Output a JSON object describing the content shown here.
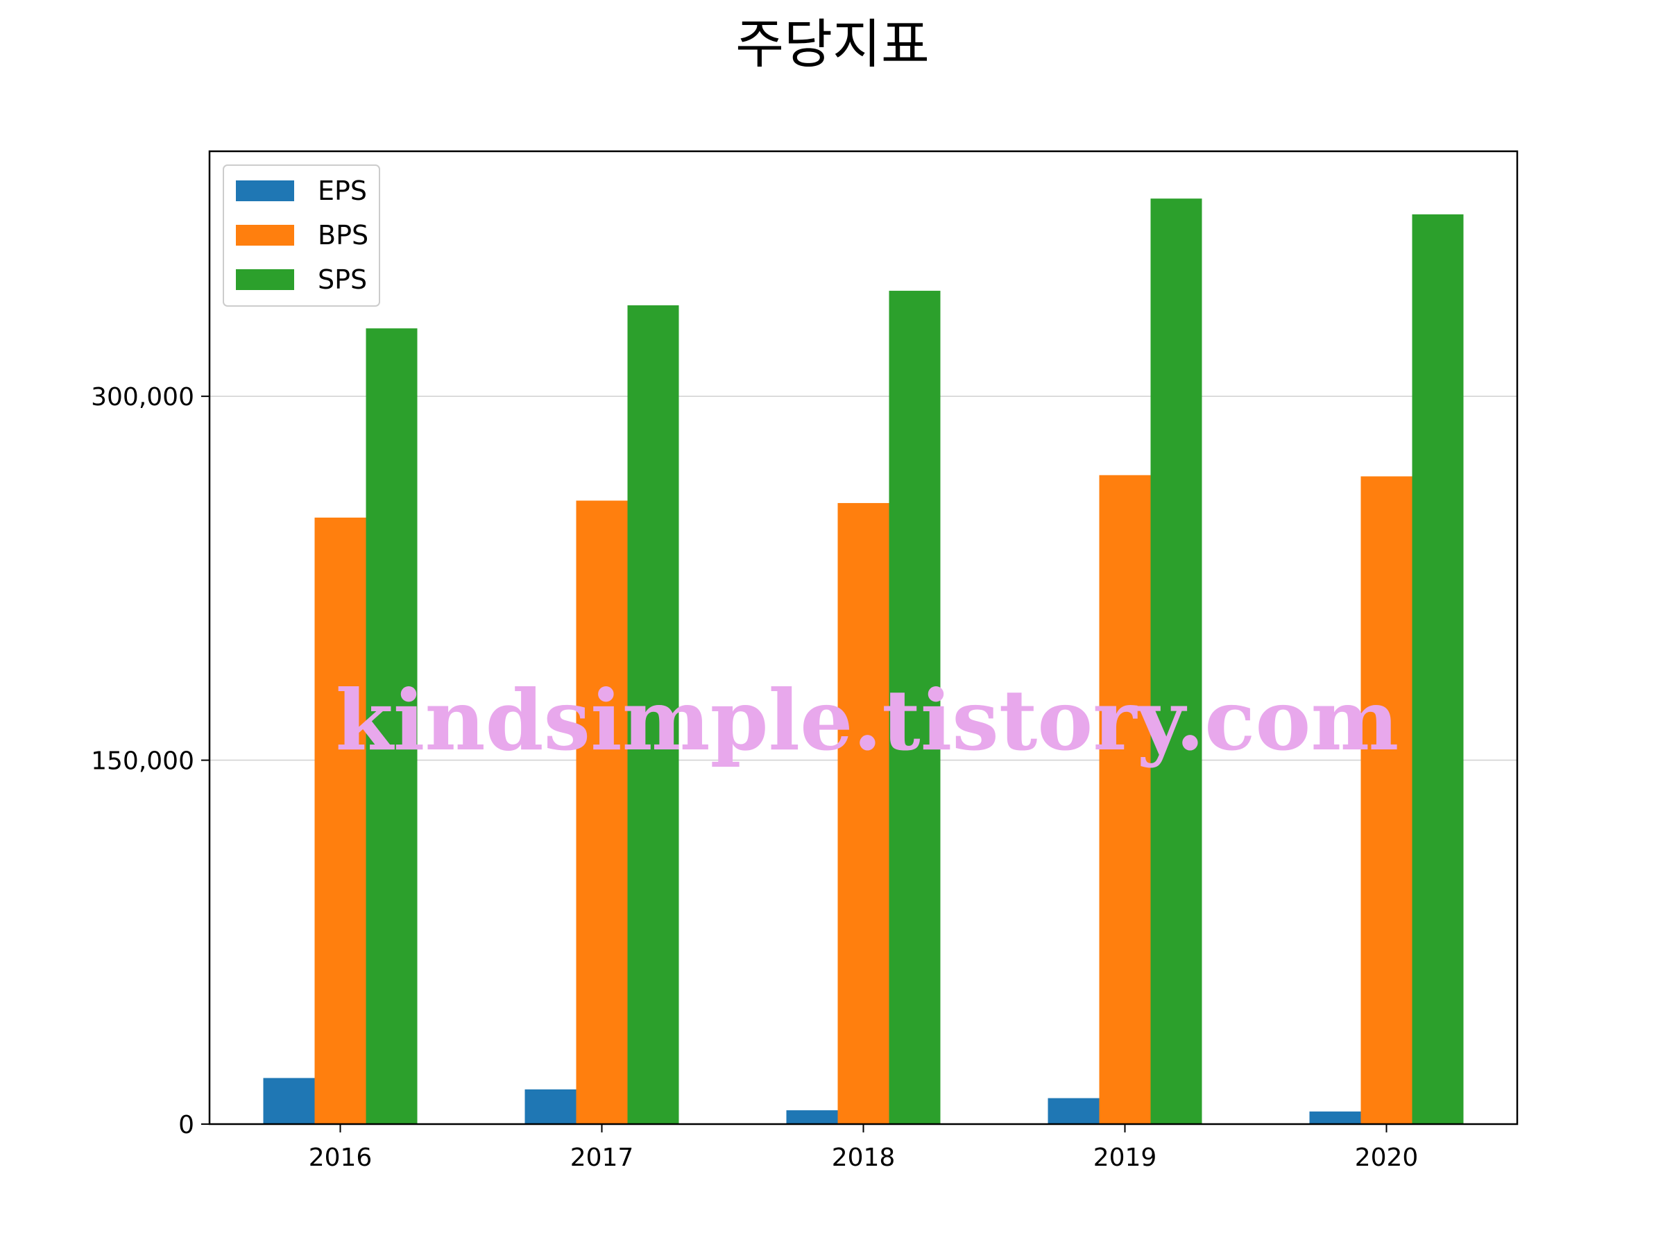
{
  "chart_data": {
    "type": "bar",
    "title": "주당지표",
    "xlabel": "",
    "ylabel": "",
    "categories": [
      "2016",
      "2017",
      "2018",
      "2019",
      "2020"
    ],
    "series": [
      {
        "name": "EPS",
        "color": "#1f77b4",
        "values": [
          19000,
          14300,
          5700,
          10700,
          5200
        ]
      },
      {
        "name": "BPS",
        "color": "#ff7f0e",
        "values": [
          250000,
          257000,
          256000,
          267500,
          267000
        ]
      },
      {
        "name": "SPS",
        "color": "#2ca02c",
        "values": [
          328000,
          337500,
          343500,
          381500,
          375000
        ]
      }
    ],
    "ylim": [
      0,
      401000
    ],
    "yticks": [
      0,
      150000,
      300000
    ],
    "ytick_labels": [
      "0",
      "150,000",
      "300,000"
    ],
    "grid": "horizontal",
    "legend_position": "top-left"
  },
  "watermark": "kindsimple.tistory.com"
}
